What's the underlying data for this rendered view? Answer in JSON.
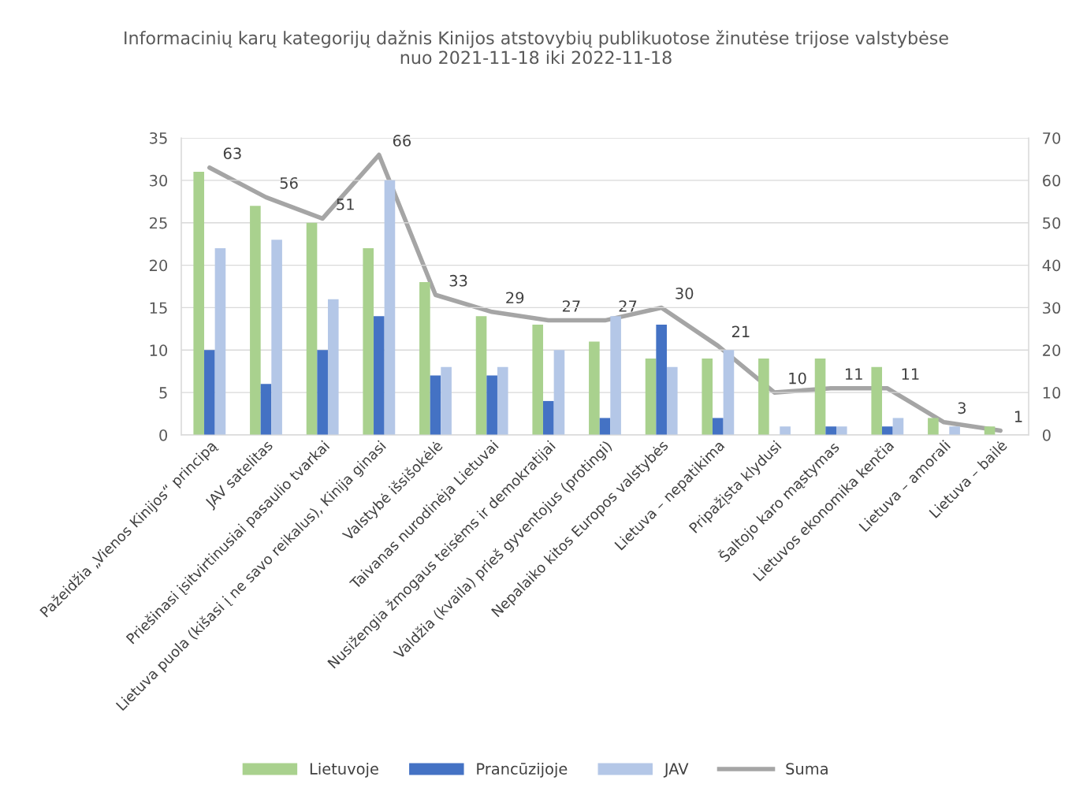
{
  "chart_data": {
    "type": "bar",
    "title": "Informacinių karų kategorijų dažnis Kinijos atstovybių publikuotose žinutėse trijose valstybėse\nnuo 2021-11-18 iki 2022-11-18",
    "categories": [
      "Pažeidžia „Vienos Kinijos“ principą",
      "JAV satelitas",
      "Priešinasi įsitvirtinusiai pasaulio tvarkai",
      "Lietuva puola (kišasi į ne savo reikalus), Kinija ginasi",
      "Valstybė išsišokėlė",
      "Taivanas nurodinėja Lietuvai",
      "Nusižengia žmogaus teisėms ir demokratijai",
      "Valdžia (kvaila) prieš gyventojus (protingi)",
      "Nepalaiko kitos Europos valstybės",
      "Lietuva – nepatikima",
      "Pripažįsta klydusi",
      "Šaltojo karo mąstymas",
      "Lietuvos ekonomika kenčia",
      "Lietuva – amorali",
      "Lietuva – bailė"
    ],
    "series": [
      {
        "name": "Lietuvoje",
        "color": "#a9d18e",
        "values": [
          31,
          27,
          25,
          22,
          18,
          14,
          13,
          11,
          9,
          9,
          9,
          9,
          8,
          2,
          1
        ]
      },
      {
        "name": "Prancūzijoje",
        "color": "#4472c4",
        "values": [
          10,
          6,
          10,
          14,
          7,
          7,
          4,
          2,
          13,
          2,
          0,
          1,
          1,
          0,
          0
        ]
      },
      {
        "name": "JAV",
        "color": "#b4c7e7",
        "values": [
          22,
          23,
          16,
          30,
          8,
          8,
          10,
          14,
          8,
          10,
          1,
          1,
          2,
          1,
          0
        ]
      },
      {
        "name": "Suma",
        "type": "line",
        "axis": "y2",
        "color": "#a5a5a5",
        "values": [
          63,
          56,
          51,
          66,
          33,
          29,
          27,
          27,
          30,
          21,
          10,
          11,
          11,
          3,
          1
        ],
        "value_labels": [
          "63",
          "56",
          "51",
          "66",
          "33",
          "29",
          "27",
          "27",
          "30",
          "21",
          "10",
          "11",
          "11",
          "3",
          "1"
        ]
      }
    ],
    "ylim": [
      0,
      35
    ],
    "yticks": [
      0,
      5,
      10,
      15,
      20,
      25,
      30,
      35
    ],
    "y2lim": [
      0,
      70
    ],
    "y2ticks": [
      0,
      10,
      20,
      30,
      40,
      50,
      60,
      70
    ],
    "grid": "y",
    "legend": "bottom",
    "marker": "none",
    "line_style": "solid"
  }
}
